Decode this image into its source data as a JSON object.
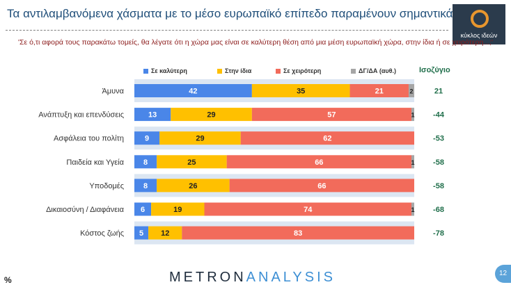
{
  "header": {
    "title": "Τα αντιλαμβανόμενα χάσματα με το μέσο ευρωπαϊκό επίπεδο παραμένουν σημαντικά",
    "logo_text": "κύκλος ιδεών"
  },
  "question": "'Σε ό,τι αφορά τους παρακάτω τομείς, θα λέγατε ότι η χώρα μας είναι σε καλύτερη θέση από μια μέση ευρωπαϊκή χώρα, στην ίδια ή σε χειρότερη...;'",
  "chart_data": {
    "type": "bar",
    "orientation": "horizontal",
    "stacked": true,
    "categories": [
      "Άμυνα",
      "Ανάπτυξη και επενδύσεις",
      "Ασφάλεια του πολίτη",
      "Παιδεία και Υγεία",
      "Υποδομές",
      "Δικαιοσύνη / Διαφάνεια",
      "Κόστος ζωής"
    ],
    "series": [
      {
        "name": "Σε καλύτερη",
        "color": "#4a86e8",
        "values": [
          42,
          13,
          9,
          8,
          8,
          6,
          5
        ]
      },
      {
        "name": "Στην ίδια",
        "color": "#ffc000",
        "values": [
          35,
          29,
          29,
          25,
          26,
          19,
          12
        ]
      },
      {
        "name": "Σε χειρότερη",
        "color": "#f26b5b",
        "values": [
          21,
          57,
          62,
          66,
          66,
          74,
          83
        ]
      },
      {
        "name": "ΔΓ/ΔΑ (αυθ.)",
        "color": "#a6a6a6",
        "values": [
          2,
          1,
          0,
          1,
          0,
          1,
          0
        ]
      }
    ],
    "balance_title": "Ισοζύγιο",
    "balance": [
      "21",
      "-44",
      "-53",
      "-58",
      "-58",
      "-68",
      "-78"
    ],
    "xlim": [
      0,
      100
    ],
    "grid": false,
    "legend_position": "top"
  },
  "footer": {
    "percent_label": "%",
    "brand_part1": "METRON",
    "brand_part2": "ANALYSIS",
    "page_number": "12"
  }
}
